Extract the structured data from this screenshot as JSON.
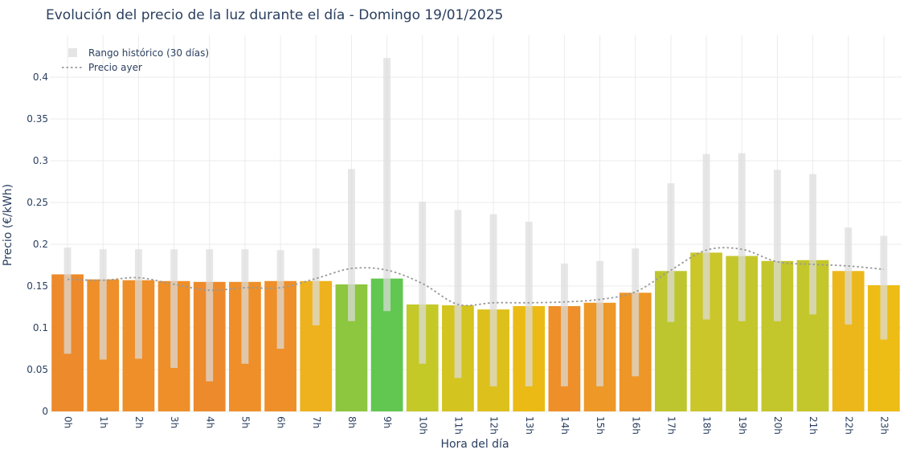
{
  "chart_data": {
    "type": "bar",
    "title": "Evolución del precio de la luz durante el día - Domingo 19/01/2025",
    "xlabel": "Hora del día",
    "ylabel": "Precio (€/kWh)",
    "ylim": [
      0,
      0.45
    ],
    "yticks": [
      0,
      0.05,
      0.1,
      0.15,
      0.2,
      0.25,
      0.3,
      0.35,
      0.4
    ],
    "ytick_labels": [
      "0",
      "0.05",
      "0.1",
      "0.15",
      "0.2",
      "0.25",
      "0.3",
      "0.35",
      "0.4"
    ],
    "grid": true,
    "legend_position": "top-left",
    "categories": [
      "0h",
      "1h",
      "2h",
      "3h",
      "4h",
      "5h",
      "6h",
      "7h",
      "8h",
      "9h",
      "10h",
      "11h",
      "12h",
      "13h",
      "14h",
      "15h",
      "16h",
      "17h",
      "18h",
      "19h",
      "20h",
      "21h",
      "22h",
      "23h"
    ],
    "values": [
      0.164,
      0.158,
      0.157,
      0.156,
      0.155,
      0.155,
      0.156,
      0.156,
      0.152,
      0.159,
      0.128,
      0.127,
      0.122,
      0.126,
      0.126,
      0.13,
      0.142,
      0.168,
      0.19,
      0.186,
      0.18,
      0.181,
      0.168,
      0.151
    ],
    "bar_colors": [
      "#ed8a2b",
      "#ee8f29",
      "#ee8f29",
      "#ee8f29",
      "#ed8a2b",
      "#ee8f29",
      "#ee8f29",
      "#eeb21e",
      "#8dc63f",
      "#62c750",
      "#c4c928",
      "#d4c41f",
      "#ddc01b",
      "#ebba14",
      "#ee8f29",
      "#ed9827",
      "#ee9627",
      "#bdc62e",
      "#cbc62a",
      "#c4c72b",
      "#c4c72b",
      "#c4c72b",
      "#ecb71a",
      "#edbd15"
    ],
    "series": [
      {
        "name": "Rango histórico (30 días)",
        "low": [
          0.069,
          0.062,
          0.063,
          0.052,
          0.036,
          0.057,
          0.075,
          0.103,
          0.108,
          0.12,
          0.057,
          0.04,
          0.03,
          0.03,
          0.03,
          0.03,
          0.042,
          0.107,
          0.11,
          0.108,
          0.108,
          0.116,
          0.104,
          0.086
        ],
        "high": [
          0.196,
          0.194,
          0.194,
          0.194,
          0.194,
          0.194,
          0.193,
          0.195,
          0.29,
          0.423,
          0.251,
          0.241,
          0.236,
          0.227,
          0.177,
          0.18,
          0.195,
          0.273,
          0.308,
          0.309,
          0.289,
          0.284,
          0.22,
          0.21
        ],
        "color": "#e5e5e5"
      },
      {
        "name": "Precio ayer",
        "values": [
          0.158,
          0.157,
          0.16,
          0.152,
          0.145,
          0.148,
          0.148,
          0.159,
          0.171,
          0.169,
          0.153,
          0.128,
          0.13,
          0.13,
          0.131,
          0.134,
          0.143,
          0.169,
          0.193,
          0.194,
          0.179,
          0.176,
          0.174,
          0.17
        ],
        "color": "#999999",
        "dash": "dot"
      }
    ]
  }
}
